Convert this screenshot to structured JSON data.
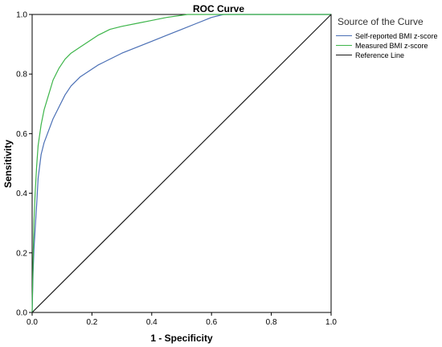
{
  "chart_data": {
    "type": "line",
    "title": "ROC Curve",
    "xlabel": "1 - Specificity",
    "ylabel": "Sensitivity",
    "xlim": [
      0,
      1
    ],
    "ylim": [
      0,
      1
    ],
    "x_ticks": [
      "0.0",
      "0.2",
      "0.4",
      "0.6",
      "0.8",
      "1.0"
    ],
    "y_ticks": [
      "0.0",
      "0.2",
      "0.4",
      "0.6",
      "0.8",
      "1.0"
    ],
    "grid": false,
    "legend_position": "top-right, outside plot",
    "legend_title": "Source of the Curve",
    "series": [
      {
        "name": "Self-reported BMI z-score",
        "color": "#4a6fb5",
        "points": [
          [
            0,
            0
          ],
          [
            0.003,
            0.13
          ],
          [
            0.006,
            0.21
          ],
          [
            0.01,
            0.28
          ],
          [
            0.015,
            0.36
          ],
          [
            0.02,
            0.45
          ],
          [
            0.03,
            0.53
          ],
          [
            0.04,
            0.57
          ],
          [
            0.055,
            0.61
          ],
          [
            0.07,
            0.65
          ],
          [
            0.09,
            0.69
          ],
          [
            0.11,
            0.73
          ],
          [
            0.13,
            0.76
          ],
          [
            0.16,
            0.79
          ],
          [
            0.19,
            0.81
          ],
          [
            0.22,
            0.83
          ],
          [
            0.26,
            0.85
          ],
          [
            0.3,
            0.87
          ],
          [
            0.35,
            0.89
          ],
          [
            0.4,
            0.91
          ],
          [
            0.45,
            0.93
          ],
          [
            0.5,
            0.95
          ],
          [
            0.55,
            0.97
          ],
          [
            0.6,
            0.99
          ],
          [
            0.64,
            1.0
          ],
          [
            1.0,
            1.0
          ]
        ]
      },
      {
        "name": "Measured BMI z-score",
        "color": "#3db54a",
        "points": [
          [
            0,
            0
          ],
          [
            0.003,
            0.17
          ],
          [
            0.006,
            0.3
          ],
          [
            0.01,
            0.4
          ],
          [
            0.015,
            0.49
          ],
          [
            0.02,
            0.56
          ],
          [
            0.03,
            0.63
          ],
          [
            0.04,
            0.68
          ],
          [
            0.055,
            0.73
          ],
          [
            0.07,
            0.78
          ],
          [
            0.09,
            0.82
          ],
          [
            0.11,
            0.85
          ],
          [
            0.13,
            0.87
          ],
          [
            0.16,
            0.89
          ],
          [
            0.19,
            0.91
          ],
          [
            0.22,
            0.93
          ],
          [
            0.26,
            0.95
          ],
          [
            0.3,
            0.96
          ],
          [
            0.35,
            0.97
          ],
          [
            0.4,
            0.98
          ],
          [
            0.45,
            0.99
          ],
          [
            0.52,
            1.0
          ],
          [
            1.0,
            1.0
          ]
        ]
      },
      {
        "name": "Reference Line",
        "color": "#1a1a1a",
        "points": [
          [
            0,
            0
          ],
          [
            1,
            1
          ]
        ]
      }
    ]
  }
}
